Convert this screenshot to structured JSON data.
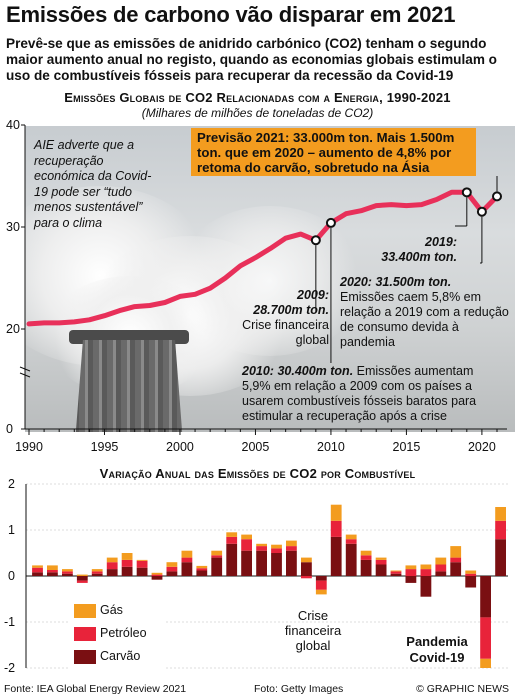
{
  "header": {
    "title": "Emissões de carbono vão disparar em 2021",
    "subtitle": "Prevê-se que as emissões de anidrido carbónico (CO2) tenham o segundo maior aumento anual no registo, quando as economias globais estimulam o uso de combustíveis fósseis para recuperar da recessão da Covid-19"
  },
  "colors": {
    "line": "#e8305a",
    "gas": "#f39c1f",
    "oil": "#e8233a",
    "coal": "#7a0f12",
    "forecast_box": "#f39c1f"
  },
  "chart_data": [
    {
      "type": "line",
      "title": "Emissões Globais de CO2 Relacionadas com a Energia, 1990-2021",
      "subtitle": "(Milhares de milhões de toneladas de CO2)",
      "x": [
        1990,
        1991,
        1992,
        1993,
        1994,
        1995,
        1996,
        1997,
        1998,
        1999,
        2000,
        2001,
        2002,
        2003,
        2004,
        2005,
        2006,
        2007,
        2008,
        2009,
        2010,
        2011,
        2012,
        2013,
        2014,
        2015,
        2016,
        2017,
        2018,
        2019,
        2020,
        2021
      ],
      "values": [
        20.5,
        20.6,
        20.6,
        20.7,
        20.9,
        21.3,
        21.8,
        22.2,
        22.3,
        22.6,
        23.2,
        23.4,
        24.0,
        25.0,
        26.2,
        27.0,
        27.9,
        28.9,
        29.3,
        28.7,
        30.4,
        31.3,
        31.6,
        32.1,
        32.2,
        32.1,
        32.2,
        32.7,
        33.4,
        33.4,
        31.5,
        33.0
      ],
      "ylim": [
        0,
        40
      ],
      "yticks": [
        0,
        20,
        30,
        40
      ],
      "xticks": [
        1990,
        1995,
        2000,
        2005,
        2010,
        2015,
        2020
      ],
      "highlight_points": [
        2009,
        2010,
        2019,
        2020,
        2021
      ],
      "annotations": {
        "aie_note": "AIE adverte que a recuperação económica da Covid-19 pode ser “tudo menos sustentável” para o clima",
        "forecast_2021": "Previsão 2021: 33.000m ton. Mais 1.500m ton. que em 2020 – aumento de 4,8% por retoma do carvão, sobretudo na Ásia",
        "y2019_line1": "2019:",
        "y2019_line2": "33.400m ton.",
        "y2020_head": "2020: 31.500m ton.",
        "y2020_body": "Emissões caem 5,8% em relação a 2019 com a redução de consumo devida à pandemia",
        "y2009_line1": "2009:",
        "y2009_line2": "28.700m ton.",
        "y2009_line3": "Crise financeira",
        "y2009_line4": "global",
        "y2010_head": "2010: 30.400m ton.",
        "y2010_body": "Emissões aumentam 5,9% em relação a 2009 com os países a usarem combustíveis fósseis baratos para estimular a recuperação após a crise"
      }
    },
    {
      "type": "bar",
      "title": "Variação Anual das Emissões de CO2 por Combustível",
      "stacked": true,
      "categories": [
        1990,
        1991,
        1992,
        1993,
        1994,
        1995,
        1996,
        1997,
        1998,
        1999,
        2000,
        2001,
        2002,
        2003,
        2004,
        2005,
        2006,
        2007,
        2008,
        2009,
        2010,
        2011,
        2012,
        2013,
        2014,
        2015,
        2016,
        2017,
        2018,
        2019,
        2020,
        2021
      ],
      "series": [
        {
          "name": "Carvão",
          "values": [
            0.08,
            0.08,
            0.05,
            -0.1,
            0.05,
            0.15,
            0.2,
            0.18,
            -0.08,
            0.1,
            0.3,
            0.12,
            0.4,
            0.7,
            0.55,
            0.55,
            0.5,
            0.55,
            0.3,
            -0.1,
            0.85,
            0.7,
            0.35,
            0.25,
            0.05,
            -0.15,
            -0.45,
            0.1,
            0.3,
            -0.25,
            -0.9,
            0.8
          ]
        },
        {
          "name": "Petróleo",
          "values": [
            0.1,
            0.05,
            0.05,
            -0.05,
            0.05,
            0.15,
            0.15,
            0.15,
            0.03,
            0.1,
            0.1,
            0.05,
            0.05,
            0.15,
            0.25,
            0.1,
            0.1,
            0.1,
            -0.05,
            -0.2,
            0.35,
            0.1,
            0.1,
            0.1,
            0.05,
            0.15,
            0.15,
            0.15,
            0.1,
            0.05,
            -0.9,
            0.4
          ]
        },
        {
          "name": "Gás",
          "values": [
            0.05,
            0.1,
            0.05,
            0.03,
            0.05,
            0.1,
            0.15,
            0.02,
            0.04,
            0.1,
            0.15,
            0.05,
            0.1,
            0.1,
            0.1,
            0.05,
            0.08,
            0.12,
            0.1,
            -0.1,
            0.35,
            0.1,
            0.1,
            0.05,
            0.02,
            0.08,
            0.1,
            0.15,
            0.25,
            0.07,
            -0.2,
            0.3
          ]
        }
      ],
      "ylim": [
        -2,
        2
      ],
      "yticks": [
        -2,
        -1,
        0,
        1,
        2
      ],
      "annotations": {
        "crisis_line1": "Crise",
        "crisis_line2": "financeira",
        "crisis_line3": "global",
        "pandemic_line1": "Pandemia",
        "pandemic_line2": "Covid-19"
      }
    }
  ],
  "footer": {
    "source": "Fonte: IEA Global Energy Review 2021",
    "photo": "Foto: Getty Images",
    "credit": "© GRAPHIC NEWS"
  }
}
